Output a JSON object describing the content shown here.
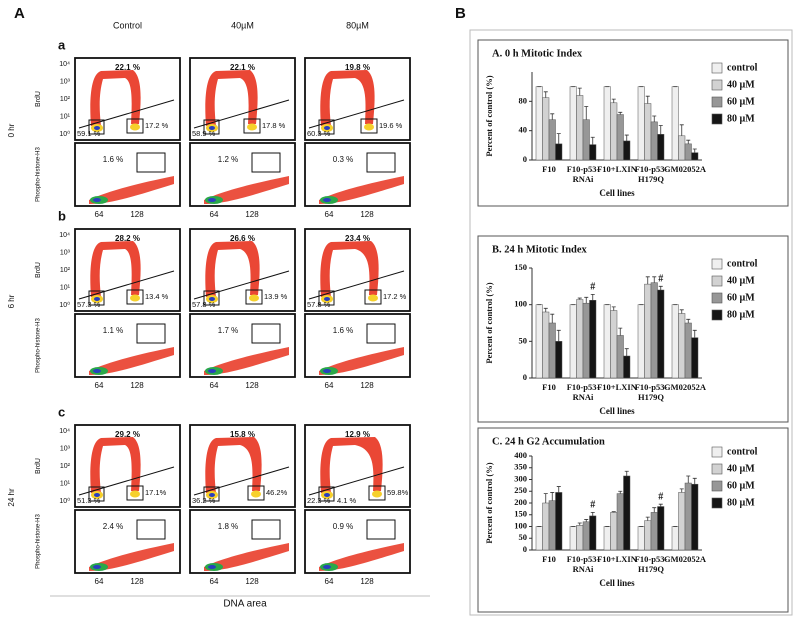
{
  "panel_a": {
    "label": "A",
    "columns": [
      "Control",
      "40µM",
      "80µM"
    ],
    "x_axis_label": "DNA area",
    "x_ticks": [
      "64",
      "128"
    ],
    "brdu_label": "BrdU",
    "ph3_label": "Phospho-histone-H3",
    "brdu_ticks": [
      "10⁴",
      "10³",
      "10²",
      "10¹",
      "10⁰"
    ],
    "rows": [
      {
        "letter": "a",
        "time": "0 hr",
        "panels": [
          {
            "top": "22.1 %",
            "left": "59.1 %",
            "right": "17.2 %",
            "mitotic": "1.6 %"
          },
          {
            "top": "22.1 %",
            "left": "58.9 %",
            "right": "17.8 %",
            "mitotic": "1.2 %"
          },
          {
            "top": "19.8 %",
            "left": "60.3 %",
            "right": "19.6 %",
            "mitotic": "0.3 %"
          }
        ]
      },
      {
        "letter": "b",
        "time": "6 hr",
        "panels": [
          {
            "top": "28.2 %",
            "left": "57.3 %",
            "right": "13.4 %",
            "mitotic": "1.1 %"
          },
          {
            "top": "26.6 %",
            "left": "57.8 %",
            "right": "13.9 %",
            "mitotic": "1.7 %"
          },
          {
            "top": "23.4 %",
            "left": "57.8 %",
            "right": "17.2 %",
            "mitotic": "1.6 %"
          }
        ]
      },
      {
        "letter": "c",
        "time": "24 hr",
        "panels": [
          {
            "top": "29.2 %",
            "left": "51.3 %",
            "right": "17.1%",
            "mitotic": "2.4 %"
          },
          {
            "top": "15.8 %",
            "left": "36.2 %",
            "right": "46.2%",
            "mitotic": "1.8 %"
          },
          {
            "top": "12.9 %",
            "left": "22.3 %",
            "middle": "4.1 %",
            "right": "59.8%",
            "mitotic": "0.9 %"
          }
        ]
      }
    ]
  },
  "panel_b": {
    "label": "B"
  },
  "chart_data": [
    {
      "type": "bar",
      "title": "A.  0 h Mitotic Index",
      "y_label": "Percent of control (%)",
      "x_label": "Cell lines",
      "categories": [
        "F10",
        "F10-p53-\nRNAi",
        "F10+LXIN",
        "F10-p53-\nH179Q",
        "GM02052A"
      ],
      "ylim": [
        0,
        120
      ],
      "yticks": [
        0,
        40,
        80
      ],
      "series": [
        {
          "name": "control",
          "color": "#efefef",
          "values": [
            100,
            100,
            100,
            100,
            100
          ],
          "errors": [
            0,
            0,
            0,
            0,
            0
          ]
        },
        {
          "name": "40 µM",
          "color": "#d2d2d2",
          "values": [
            85,
            88,
            78,
            77,
            33
          ],
          "errors": [
            8,
            10,
            5,
            10,
            15
          ]
        },
        {
          "name": "60 µM",
          "color": "#979797",
          "values": [
            55,
            55,
            62,
            52,
            22
          ],
          "errors": [
            8,
            18,
            3,
            8,
            5
          ]
        },
        {
          "name": "80 µM",
          "color": "#151515",
          "values": [
            22,
            21,
            26,
            35,
            10
          ],
          "errors": [
            14,
            10,
            8,
            12,
            5
          ]
        }
      ]
    },
    {
      "type": "bar",
      "title": "B.  24 h Mitotic Index",
      "y_label": "Percent of control (%)",
      "x_label": "Cell lines",
      "categories": [
        "F10",
        "F10-p53-\nRNAi",
        "F10+LXIN",
        "F10-p53-\nH179Q",
        "GM02052A"
      ],
      "ylim": [
        0,
        150
      ],
      "yticks": [
        0,
        50,
        100,
        150
      ],
      "annotations": [
        {
          "text": "#",
          "category": "F10-p53-\nRNAi"
        },
        {
          "text": "#",
          "category": "F10-p53-\nH179Q"
        }
      ],
      "series": [
        {
          "name": "control",
          "color": "#efefef",
          "values": [
            100,
            100,
            100,
            100,
            100
          ],
          "errors": [
            0,
            0,
            0,
            0,
            0
          ]
        },
        {
          "name": "40 µM",
          "color": "#d2d2d2",
          "values": [
            90,
            107,
            92,
            128,
            88
          ],
          "errors": [
            5,
            2,
            5,
            10,
            5
          ]
        },
        {
          "name": "60 µM",
          "color": "#979797",
          "values": [
            75,
            102,
            58,
            130,
            75
          ],
          "errors": [
            12,
            8,
            10,
            8,
            5
          ]
        },
        {
          "name": "80 µM",
          "color": "#151515",
          "values": [
            50,
            106,
            30,
            120,
            55
          ],
          "errors": [
            15,
            8,
            10,
            5,
            10
          ]
        }
      ]
    },
    {
      "type": "bar",
      "title": "C.  24 h G2 Accumulation",
      "y_label": "Percent of control (%)",
      "x_label": "Cell lines",
      "categories": [
        "F10",
        "F10-p53-\nRNAi",
        "F10+LXIN",
        "F10-p53-\nH179Q",
        "GM02052A"
      ],
      "ylim": [
        0,
        400
      ],
      "yticks": [
        0,
        50,
        100,
        150,
        200,
        250,
        300,
        350,
        400
      ],
      "annotations": [
        {
          "text": "#",
          "category": "F10-p53-\nRNAi"
        },
        {
          "text": "#",
          "category": "F10-p53-\nH179Q"
        }
      ],
      "series": [
        {
          "name": "control",
          "color": "#efefef",
          "values": [
            100,
            100,
            100,
            100,
            100
          ],
          "errors": [
            0,
            0,
            0,
            0,
            0
          ]
        },
        {
          "name": "40 µM",
          "color": "#d2d2d2",
          "values": [
            200,
            105,
            160,
            125,
            245
          ],
          "errors": [
            40,
            10,
            3,
            15,
            15
          ]
        },
        {
          "name": "60 µM",
          "color": "#979797",
          "values": [
            210,
            120,
            240,
            160,
            285
          ],
          "errors": [
            35,
            10,
            10,
            20,
            30
          ]
        },
        {
          "name": "80 µM",
          "color": "#151515",
          "values": [
            245,
            145,
            315,
            185,
            280
          ],
          "errors": [
            25,
            15,
            20,
            10,
            25
          ]
        }
      ]
    }
  ]
}
